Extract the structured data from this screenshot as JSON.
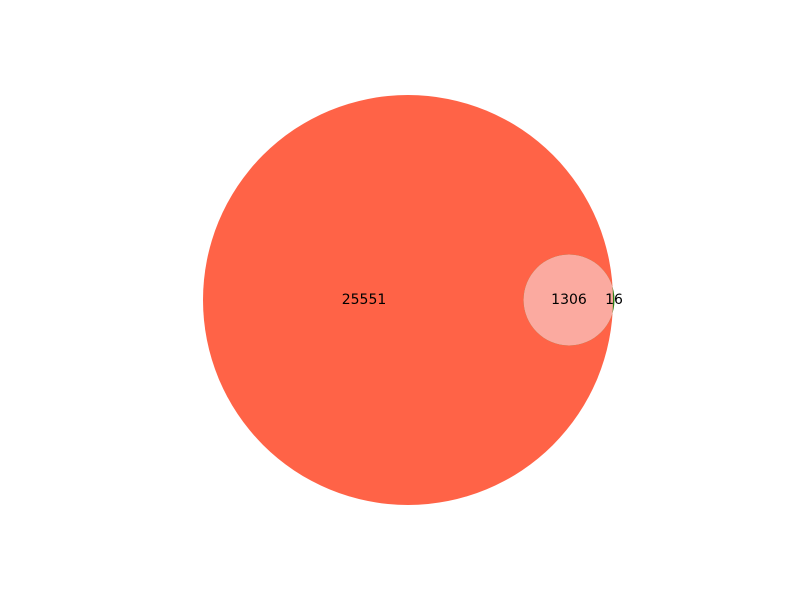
{
  "chart_data": {
    "type": "venn",
    "title": "",
    "sets": [
      {
        "name": "",
        "size": 26857,
        "color": "#ff6347"
      },
      {
        "name": "",
        "size": 1322,
        "color": "#2e7d10"
      }
    ],
    "regions": [
      {
        "sets": [
          "A"
        ],
        "value": 25551,
        "label": "25551",
        "color": "#ff6347"
      },
      {
        "sets": [
          "A",
          "B"
        ],
        "value": 1306,
        "label": "1306",
        "color": "#fbaaa0"
      },
      {
        "sets": [
          "B"
        ],
        "value": 16,
        "label": "16",
        "color": "#2e7d10"
      }
    ]
  }
}
